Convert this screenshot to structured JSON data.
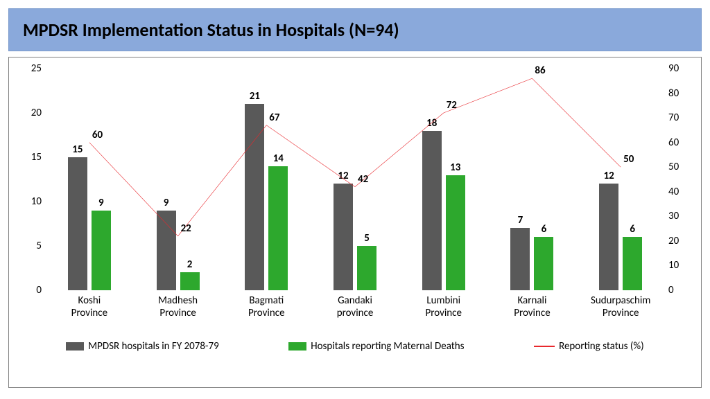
{
  "title": "MPDSR Implementation Status in Hospitals  (N=94)",
  "colors": {
    "title_bg": "#8aa9db",
    "bar1": "#595959",
    "bar2": "#2da82d",
    "line": "#e8282d",
    "border": "#7f7f7f"
  },
  "y_left": {
    "min": 0,
    "max": 25,
    "step": 5,
    "ticks": [
      "0",
      "5",
      "10",
      "15",
      "20",
      "25"
    ]
  },
  "y_right": {
    "min": 0,
    "max": 90,
    "step": 10,
    "ticks": [
      "0",
      "10",
      "20",
      "30",
      "40",
      "50",
      "60",
      "70",
      "80",
      "90"
    ]
  },
  "categories": [
    {
      "name": "Koshi Province",
      "bar1": 15,
      "bar2": 9,
      "line": 60
    },
    {
      "name": "Madhesh Province",
      "bar1": 9,
      "bar2": 2,
      "line": 22
    },
    {
      "name": "Bagmati Province",
      "bar1": 21,
      "bar2": 14,
      "line": 67
    },
    {
      "name": "Gandaki province",
      "bar1": 12,
      "bar2": 5,
      "line": 42
    },
    {
      "name": "Lumbini Province",
      "bar1": 18,
      "bar2": 13,
      "line": 72
    },
    {
      "name": "Karnali Province",
      "bar1": 7,
      "bar2": 6,
      "line": 86
    },
    {
      "name": "Sudurpaschim Province",
      "bar1": 12,
      "bar2": 6,
      "line": 50
    }
  ],
  "legend": {
    "bar1": "MPDSR hospitals in FY 2078-79",
    "bar2": "Hospitals reporting Maternal Deaths",
    "line": "Reporting status (%)"
  }
}
